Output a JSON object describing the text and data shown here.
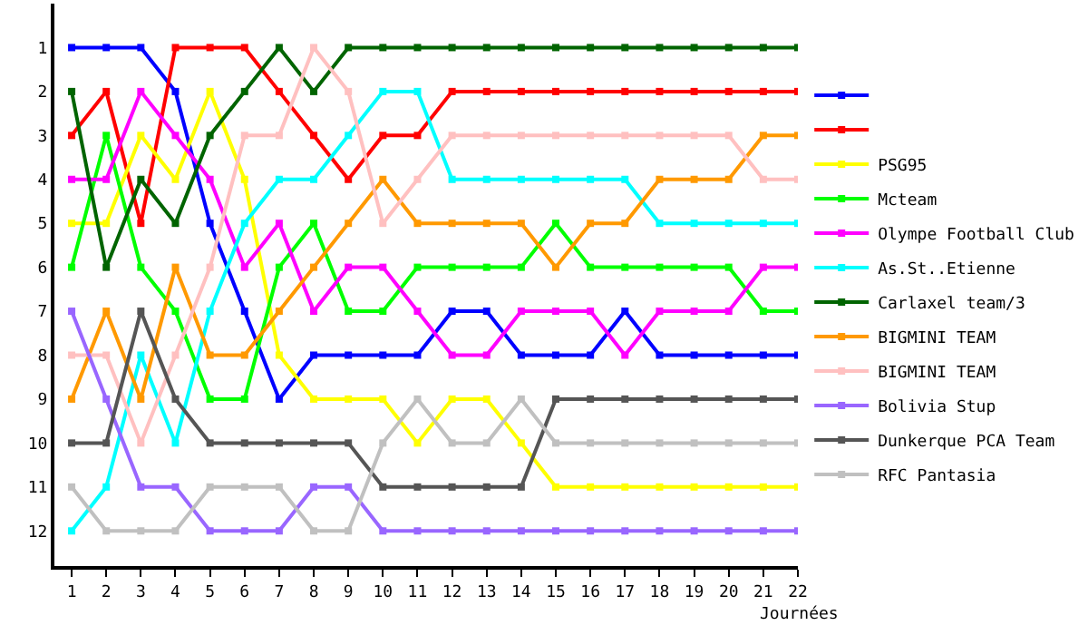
{
  "chart_data": {
    "type": "line",
    "xlabel": "Journées",
    "x": [
      1,
      2,
      3,
      4,
      5,
      6,
      7,
      8,
      9,
      10,
      11,
      12,
      13,
      14,
      15,
      16,
      17,
      18,
      19,
      20,
      21,
      22
    ],
    "xlim": [
      0.5,
      22
    ],
    "xticks": [
      1,
      2,
      3,
      4,
      5,
      6,
      7,
      8,
      9,
      10,
      11,
      12,
      13,
      14,
      15,
      16,
      17,
      18,
      19,
      20,
      21,
      22
    ],
    "ylim": [
      12.8,
      0
    ],
    "yticks": [
      1,
      2,
      3,
      4,
      5,
      6,
      7,
      8,
      9,
      10,
      11,
      12
    ],
    "legend": "right",
    "marker": "square",
    "line_style": "solid",
    "series": [
      {
        "color": "#0000ff",
        "values": [
          1,
          1,
          1,
          2,
          5,
          7,
          9,
          8,
          8,
          8,
          8,
          7,
          7,
          8,
          8,
          8,
          7,
          8,
          8,
          8,
          8,
          8
        ]
      },
      {
        "color": "#ff0000",
        "values": [
          3,
          2,
          5,
          1,
          1,
          1,
          2,
          3,
          4,
          3,
          3,
          2,
          2,
          2,
          2,
          2,
          2,
          2,
          2,
          2,
          2,
          2
        ]
      },
      {
        "name": "PSG95",
        "color": "#ffff00",
        "values": [
          5,
          5,
          3,
          4,
          2,
          4,
          8,
          9,
          9,
          9,
          10,
          9,
          9,
          10,
          11,
          11,
          11,
          11,
          11,
          11,
          11,
          11
        ]
      },
      {
        "name": "Mcteam",
        "color": "#00ff00",
        "values": [
          6,
          3,
          6,
          7,
          9,
          9,
          6,
          5,
          7,
          7,
          6,
          6,
          6,
          6,
          5,
          6,
          6,
          6,
          6,
          6,
          7,
          7
        ]
      },
      {
        "name": "Olympe Football Club",
        "color": "#ff00ff",
        "values": [
          4,
          4,
          2,
          3,
          4,
          6,
          5,
          7,
          6,
          6,
          7,
          8,
          8,
          7,
          7,
          7,
          8,
          7,
          7,
          7,
          6,
          6
        ]
      },
      {
        "name": "As.St..Etienne",
        "color": "#00ffff",
        "values": [
          12,
          11,
          8,
          10,
          7,
          5,
          4,
          4,
          3,
          2,
          2,
          4,
          4,
          4,
          4,
          4,
          4,
          5,
          5,
          5,
          5,
          5
        ]
      },
      {
        "name": "Carlaxel team/3",
        "color": "#006400",
        "values": [
          2,
          6,
          4,
          5,
          3,
          2,
          1,
          2,
          1,
          1,
          1,
          1,
          1,
          1,
          1,
          1,
          1,
          1,
          1,
          1,
          1,
          1
        ]
      },
      {
        "name": "BIGMINI TEAM",
        "color": "#ff9900",
        "values": [
          9,
          7,
          9,
          6,
          8,
          8,
          7,
          6,
          5,
          4,
          5,
          5,
          5,
          5,
          6,
          5,
          5,
          4,
          4,
          4,
          3,
          3
        ]
      },
      {
        "name": "BIGMINI TEAM",
        "color": "#ffc0c0",
        "values": [
          8,
          8,
          10,
          8,
          6,
          3,
          3,
          1,
          2,
          5,
          4,
          3,
          3,
          3,
          3,
          3,
          3,
          3,
          3,
          3,
          4,
          4
        ]
      },
      {
        "name": "Bolivia Stup",
        "color": "#9966ff",
        "values": [
          7,
          9,
          11,
          11,
          12,
          12,
          12,
          11,
          11,
          12,
          12,
          12,
          12,
          12,
          12,
          12,
          12,
          12,
          12,
          12,
          12,
          12
        ]
      },
      {
        "name": "Dunkerque PCA Team",
        "color": "#555555",
        "values": [
          10,
          10,
          7,
          9,
          10,
          10,
          10,
          10,
          10,
          11,
          11,
          11,
          11,
          11,
          9,
          9,
          9,
          9,
          9,
          9,
          9,
          9
        ]
      },
      {
        "name": "RFC Pantasia",
        "color": "#c0c0c0",
        "values": [
          11,
          12,
          12,
          12,
          11,
          11,
          11,
          12,
          12,
          10,
          9,
          10,
          10,
          9,
          10,
          10,
          10,
          10,
          10,
          10,
          10,
          10
        ]
      }
    ]
  }
}
